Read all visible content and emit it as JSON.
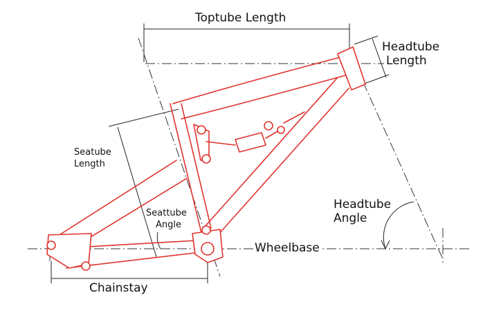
{
  "labels": {
    "toptube_length": "Toptube Length",
    "headtube_length_line1": "Headtube",
    "headtube_length_line2": "Length",
    "seattube_length_line1": "Seatube",
    "seattube_length_line2": "Length",
    "seattube_angle_line1": "Seattube",
    "seattube_angle_line2": "Angle",
    "headtube_angle_line1": "Headtube",
    "headtube_angle_line2": "Angle",
    "wheelbase": "Wheelbase",
    "chainstay": "Chainstay"
  },
  "colors": {
    "frame": "#e0322c",
    "dimension_lines": "#222222",
    "background": "#ffffff"
  }
}
